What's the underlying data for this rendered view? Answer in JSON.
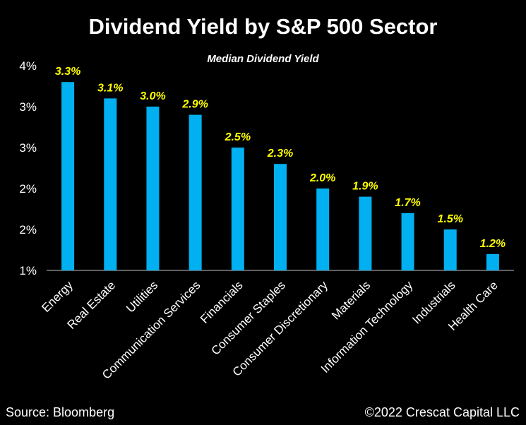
{
  "title": "Dividend Yield by S&P 500 Sector",
  "footer": {
    "source": "Source: Bloomberg",
    "copyright": "©2022 Crescat Capital LLC"
  },
  "colors": {
    "bar": "#00B0F0",
    "data_label": "#FFFF00",
    "background": "#000000",
    "text": "#FFFFFF",
    "axis": "#BFBFBF"
  },
  "chart_data": {
    "type": "bar",
    "title": "Dividend Yield by S&P 500 Sector",
    "subtitle": "Median Dividend Yield",
    "xlabel": "",
    "ylabel": "",
    "ylim": [
      1.0,
      3.5
    ],
    "yticks": [
      1.0,
      1.5,
      2.0,
      2.5,
      3.0,
      3.5
    ],
    "ytick_labels": [
      "1%",
      "2%",
      "2%",
      "3%",
      "3%",
      "4%"
    ],
    "grid": false,
    "categories": [
      "Energy",
      "Real Estate",
      "Utilities",
      "Communication Services",
      "Financials",
      "Consumer Staples",
      "Consumer Discretionary",
      "Materials",
      "Information Technology",
      "Industrials",
      "Health Care"
    ],
    "values": [
      3.3,
      3.1,
      3.0,
      2.9,
      2.5,
      2.3,
      2.0,
      1.9,
      1.7,
      1.5,
      1.2
    ],
    "data_labels": [
      "3.3%",
      "3.1%",
      "3.0%",
      "2.9%",
      "2.5%",
      "2.3%",
      "2.0%",
      "1.9%",
      "1.7%",
      "1.5%",
      "1.2%"
    ]
  }
}
